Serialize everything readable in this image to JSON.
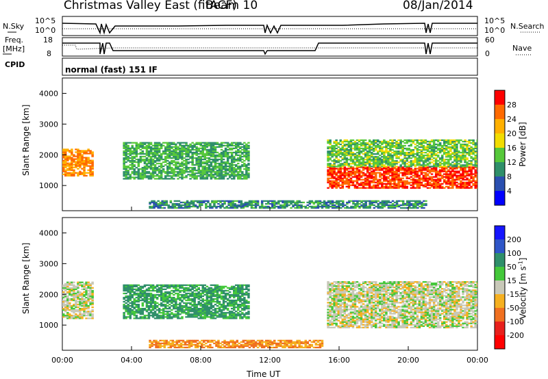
{
  "header": {
    "title": "Christmas Valley East (fitACF)",
    "beam": "Beam 10",
    "date": "08/Jan/2014"
  },
  "top_panels": {
    "nsky_label": "N.Sky",
    "nsky_top_tick": "10^5",
    "nsky_bottom_tick": "10^0",
    "nsearch_label": "N.Search",
    "nsearch_top_tick": "10^5",
    "nsearch_bottom_tick": "10^0",
    "freq_label": "Freq.",
    "freq_unit": "[MHz]",
    "freq_ticks": [
      "18",
      "8"
    ],
    "nave_label": "Nave",
    "nave_ticks": [
      "60",
      "0"
    ],
    "cpid_label": "CPID",
    "cpid_text": "normal (fast) 151 IF"
  },
  "colorbars": {
    "power": {
      "label": "Power [dB]",
      "ticks": [
        "28",
        "24",
        "20",
        "16",
        "12",
        "8",
        "4"
      ],
      "colors": [
        "#ff0000",
        "#ff6a00",
        "#ffb000",
        "#f2dc00",
        "#56c83a",
        "#2f8f6a",
        "#2a4fb0",
        "#0000ff"
      ]
    },
    "velocity": {
      "label": "Velocity [m s-1]",
      "ticks": [
        "200",
        "100",
        "50",
        "15",
        "-15",
        "-50",
        "-100",
        "-200"
      ],
      "colors": [
        "#1515ff",
        "#2f56c8",
        "#2f8f6a",
        "#44c83a",
        "#c8c8b8",
        "#f5b020",
        "#f07020",
        "#e8201c",
        "#ff0000"
      ]
    }
  },
  "chart_data": [
    {
      "type": "heatmap",
      "title": "Power",
      "ylabel": "Slant Range [km]",
      "ylim": [
        180,
        4500
      ],
      "yticks": [
        1000,
        2000,
        3000,
        4000
      ],
      "xlabel": "Time UT",
      "xticks": [
        "00:00",
        "04:00",
        "08:00",
        "12:00",
        "16:00",
        "20:00",
        "00:00"
      ],
      "colorbar_label": "Power [dB]",
      "regions": [
        {
          "t_start": 0.0,
          "t_end": 1.8,
          "range_low": 1300,
          "range_high": 2200,
          "value_db": 24
        },
        {
          "t_start": 3.5,
          "t_end": 10.8,
          "range_low": 1200,
          "range_high": 2400,
          "value_db": 12
        },
        {
          "t_start": 15.3,
          "t_end": 24.0,
          "range_low": 900,
          "range_high": 1600,
          "value_db": 28
        },
        {
          "t_start": 15.3,
          "t_end": 24.0,
          "range_low": 1600,
          "range_high": 2500,
          "value_db": 14
        },
        {
          "t_start": 5.0,
          "t_end": 21.0,
          "range_low": 250,
          "range_high": 500,
          "value_db": 10
        }
      ]
    },
    {
      "type": "heatmap",
      "title": "Velocity",
      "ylabel": "Slant Range [km]",
      "ylim": [
        180,
        4500
      ],
      "yticks": [
        1000,
        2000,
        3000,
        4000
      ],
      "xlabel": "Time UT",
      "xticks": [
        "00:00",
        "04:00",
        "08:00",
        "12:00",
        "16:00",
        "20:00",
        "00:00"
      ],
      "colorbar_label": "Velocity [m s-1]",
      "regions": [
        {
          "t_start": 0.0,
          "t_end": 1.8,
          "range_low": 1200,
          "range_high": 2400,
          "value_ms": 0
        },
        {
          "t_start": 3.5,
          "t_end": 10.8,
          "range_low": 1200,
          "range_high": 2300,
          "value_ms": 60
        },
        {
          "t_start": 15.3,
          "t_end": 24.0,
          "range_low": 900,
          "range_high": 2400,
          "value_ms": 0
        },
        {
          "t_start": 5.0,
          "t_end": 15.0,
          "range_low": 250,
          "range_high": 500,
          "value_ms": -50
        }
      ]
    }
  ]
}
